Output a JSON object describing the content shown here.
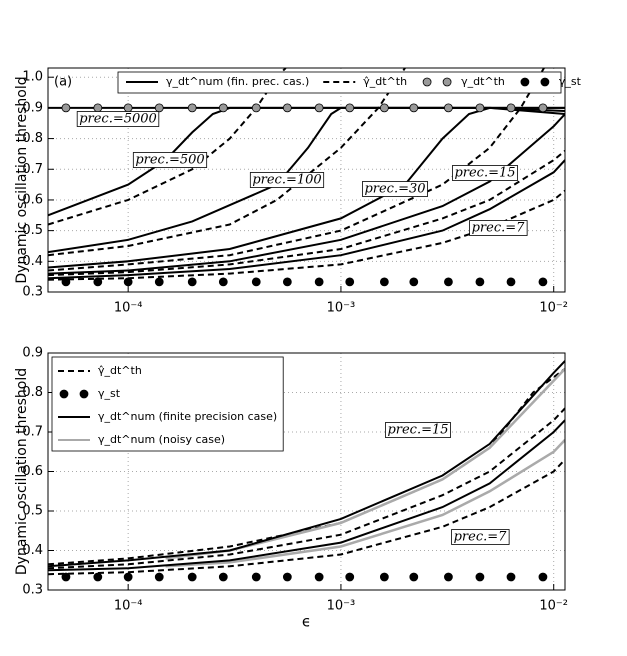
{
  "chart_data": [
    {
      "type": "line",
      "panel_label": "(a)",
      "ylabel": "Dynamic oscillation threshold",
      "xscale": "log",
      "xlim": [
        4.2e-05,
        0.0113
      ],
      "ylim": [
        0.3,
        1.03
      ],
      "grid": true,
      "xticks": [
        {
          "value": 0.0001,
          "label": "10⁻⁴"
        },
        {
          "value": 0.001,
          "label": "10⁻³"
        },
        {
          "value": 0.01,
          "label": "10⁻²"
        }
      ],
      "yticks": [
        0.3,
        0.4,
        0.5,
        0.6,
        0.7,
        0.8,
        0.9,
        {
          "value": 1,
          "label": "1.0"
        }
      ],
      "legend": {
        "position": "top",
        "entries": [
          {
            "name": "γ_dt^num (fin. prec. cas.)",
            "style": "solid",
            "color": "#000000"
          },
          {
            "name": "γ̂_dt^th",
            "style": "dashed",
            "color": "#000000"
          },
          {
            "name": "γ_dt^th",
            "style": "markers",
            "color": "#999999"
          },
          {
            "name": "γ_st",
            "style": "markers",
            "color": "#000000"
          }
        ]
      },
      "annotations": [
        "prec.=5000",
        "prec.=500",
        "prec.=100",
        "prec.=30",
        "prec.=15",
        "prec.=7"
      ],
      "series": [
        {
          "style": "solid",
          "color": "#000000",
          "x": [
            4.2e-05,
            0.0001,
            0.001,
            0.005,
            0.0113
          ],
          "values": [
            0.9,
            0.9,
            0.9,
            0.9,
            0.89
          ]
        },
        {
          "style": "solid",
          "color": "#000000",
          "x": [
            4.2e-05,
            0.0001,
            0.00015,
            0.0002,
            0.00025,
            0.0003,
            0.0113
          ],
          "values": [
            0.55,
            0.65,
            0.73,
            0.82,
            0.88,
            0.9,
            0.9
          ]
        },
        {
          "style": "dashed",
          "color": "#000000",
          "x": [
            4.2e-05,
            0.0001,
            0.0002,
            0.0003,
            0.0004,
            0.0005,
            0.00055
          ],
          "values": [
            0.52,
            0.6,
            0.7,
            0.8,
            0.9,
            1.0,
            1.03
          ]
        },
        {
          "style": "solid",
          "color": "#000000",
          "x": [
            4.2e-05,
            0.0001,
            0.0002,
            0.0005,
            0.0007,
            0.0009,
            0.001,
            0.0113
          ],
          "values": [
            0.43,
            0.47,
            0.53,
            0.65,
            0.77,
            0.88,
            0.9,
            0.9
          ]
        },
        {
          "style": "dashed",
          "color": "#000000",
          "x": [
            4.2e-05,
            0.0001,
            0.0003,
            0.0005,
            0.001,
            0.0015,
            0.002
          ],
          "values": [
            0.42,
            0.45,
            0.52,
            0.6,
            0.77,
            0.9,
            1.03
          ]
        },
        {
          "style": "solid",
          "color": "#000000",
          "x": [
            4.2e-05,
            0.0001,
            0.0003,
            0.001,
            0.002,
            0.003,
            0.004,
            0.005,
            0.0113
          ],
          "values": [
            0.38,
            0.4,
            0.44,
            0.54,
            0.65,
            0.8,
            0.88,
            0.9,
            0.88
          ]
        },
        {
          "style": "dashed",
          "color": "#000000",
          "x": [
            4.2e-05,
            0.0001,
            0.0003,
            0.001,
            0.003,
            0.005,
            0.007,
            0.009
          ],
          "values": [
            0.37,
            0.39,
            0.42,
            0.5,
            0.65,
            0.77,
            0.9,
            1.03
          ]
        },
        {
          "style": "solid",
          "color": "#000000",
          "x": [
            4.2e-05,
            0.0001,
            0.0003,
            0.001,
            0.003,
            0.005,
            0.01,
            0.0113
          ],
          "values": [
            0.36,
            0.37,
            0.4,
            0.47,
            0.58,
            0.66,
            0.84,
            0.88
          ]
        },
        {
          "style": "dashed",
          "color": "#000000",
          "x": [
            4.2e-05,
            0.0001,
            0.0003,
            0.001,
            0.003,
            0.005,
            0.01,
            0.0113
          ],
          "values": [
            0.355,
            0.365,
            0.39,
            0.44,
            0.54,
            0.6,
            0.73,
            0.76
          ]
        },
        {
          "style": "solid",
          "color": "#000000",
          "x": [
            4.2e-05,
            0.0001,
            0.0003,
            0.001,
            0.003,
            0.005,
            0.01,
            0.0113
          ],
          "values": [
            0.345,
            0.355,
            0.375,
            0.42,
            0.5,
            0.57,
            0.69,
            0.73
          ]
        },
        {
          "style": "dashed",
          "color": "#000000",
          "x": [
            4.2e-05,
            0.0001,
            0.0003,
            0.001,
            0.003,
            0.005,
            0.01,
            0.0113
          ],
          "values": [
            0.34,
            0.345,
            0.36,
            0.39,
            0.46,
            0.51,
            0.6,
            0.63
          ]
        },
        {
          "style": "markers",
          "color": "#999999",
          "x": [
            5.1e-05,
            7.2e-05,
            0.0001,
            0.00014,
            0.0002,
            0.00028,
            0.0004,
            0.00056,
            0.00079,
            0.0011,
            0.0016,
            0.0022,
            0.0032,
            0.0045,
            0.0063,
            0.0089
          ],
          "values": [
            0.9,
            0.9,
            0.9,
            0.9,
            0.9,
            0.9,
            0.9,
            0.9,
            0.9,
            0.9,
            0.9,
            0.9,
            0.9,
            0.9,
            0.9,
            0.9
          ]
        },
        {
          "style": "markers",
          "color": "#000000",
          "x": [
            5.1e-05,
            7.2e-05,
            0.0001,
            0.00014,
            0.0002,
            0.00028,
            0.0004,
            0.00056,
            0.00079,
            0.0011,
            0.0016,
            0.0022,
            0.0032,
            0.0045,
            0.0063,
            0.0089
          ],
          "values": [
            0.333,
            0.333,
            0.333,
            0.333,
            0.333,
            0.333,
            0.333,
            0.333,
            0.333,
            0.333,
            0.333,
            0.333,
            0.333,
            0.333,
            0.333,
            0.333
          ]
        }
      ]
    },
    {
      "type": "line",
      "panel_label": "(b)",
      "ylabel": "Dynamic oscillation threshold",
      "xlabel": "ϵ",
      "xscale": "log",
      "xlim": [
        4.2e-05,
        0.0113
      ],
      "ylim": [
        0.3,
        0.9
      ],
      "grid": true,
      "xticks": [
        {
          "value": 0.0001,
          "label": "10⁻⁴"
        },
        {
          "value": 0.001,
          "label": "10⁻³"
        },
        {
          "value": 0.01,
          "label": "10⁻²"
        }
      ],
      "yticks": [
        0.3,
        0.4,
        0.5,
        0.6,
        0.7,
        0.8,
        0.9
      ],
      "legend": {
        "position": "upper left",
        "entries": [
          {
            "name": "γ̂_dt^th",
            "style": "dashed",
            "color": "#000000"
          },
          {
            "name": "γ_st",
            "style": "markers",
            "color": "#000000"
          },
          {
            "name": "γ_dt^num (finite precision case)",
            "style": "solid",
            "color": "#000000"
          },
          {
            "name": "γ_dt^num (noisy case)",
            "style": "solid",
            "color": "#aaaaaa"
          }
        ]
      },
      "annotations": [
        "prec.=15",
        "prec.=7"
      ],
      "series": [
        {
          "style": "dashed",
          "color": "#000000",
          "x": [
            4.2e-05,
            0.0001,
            0.0003,
            0.001,
            0.003,
            0.005,
            0.008,
            0.0113
          ],
          "values": [
            0.365,
            0.38,
            0.41,
            0.47,
            0.58,
            0.66,
            0.8,
            0.86
          ]
        },
        {
          "style": "dashed",
          "color": "#000000",
          "x": [
            4.2e-05,
            0.0001,
            0.0003,
            0.001,
            0.003,
            0.005,
            0.01,
            0.0113
          ],
          "values": [
            0.355,
            0.365,
            0.39,
            0.44,
            0.54,
            0.6,
            0.73,
            0.76
          ]
        },
        {
          "style": "dashed",
          "color": "#000000",
          "x": [
            4.2e-05,
            0.0001,
            0.0003,
            0.001,
            0.003,
            0.005,
            0.01,
            0.0113
          ],
          "values": [
            0.34,
            0.345,
            0.36,
            0.39,
            0.46,
            0.51,
            0.6,
            0.63
          ]
        },
        {
          "style": "solid",
          "color": "#aaaaaa",
          "x": [
            0.00015,
            0.0003,
            0.001,
            0.003,
            0.005,
            0.01,
            0.0113
          ],
          "values": [
            0.38,
            0.4,
            0.47,
            0.58,
            0.66,
            0.83,
            0.86
          ]
        },
        {
          "style": "solid",
          "color": "#aaaaaa",
          "x": [
            0.00015,
            0.0003,
            0.001,
            0.003,
            0.005,
            0.01,
            0.0113
          ],
          "values": [
            0.36,
            0.37,
            0.41,
            0.49,
            0.55,
            0.65,
            0.68
          ]
        },
        {
          "style": "solid",
          "color": "#000000",
          "x": [
            4.2e-05,
            0.0001,
            0.0003,
            0.001,
            0.003,
            0.005,
            0.01,
            0.0113
          ],
          "values": [
            0.36,
            0.375,
            0.4,
            0.48,
            0.59,
            0.67,
            0.85,
            0.88
          ]
        },
        {
          "style": "solid",
          "color": "#000000",
          "x": [
            4.2e-05,
            0.0001,
            0.0003,
            0.001,
            0.003,
            0.005,
            0.01,
            0.0113
          ],
          "values": [
            0.35,
            0.355,
            0.375,
            0.42,
            0.51,
            0.57,
            0.7,
            0.73
          ]
        },
        {
          "style": "markers",
          "color": "#000000",
          "x": [
            5.1e-05,
            7.2e-05,
            0.0001,
            0.00014,
            0.0002,
            0.00028,
            0.0004,
            0.00056,
            0.00079,
            0.0011,
            0.0016,
            0.0022,
            0.0032,
            0.0045,
            0.0063,
            0.0089
          ],
          "values": [
            0.333,
            0.333,
            0.333,
            0.333,
            0.333,
            0.333,
            0.333,
            0.333,
            0.333,
            0.333,
            0.333,
            0.333,
            0.333,
            0.333,
            0.333,
            0.333
          ]
        }
      ]
    }
  ]
}
